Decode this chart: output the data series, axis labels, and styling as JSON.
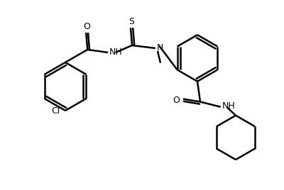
{
  "background_color": "#ffffff",
  "line_color": "#000000",
  "line_width": 1.8,
  "font_size": 9,
  "fig_width": 4.0,
  "fig_height": 2.68,
  "dpi": 100,
  "xlim": [
    0,
    10
  ],
  "ylim": [
    0,
    6.7
  ]
}
